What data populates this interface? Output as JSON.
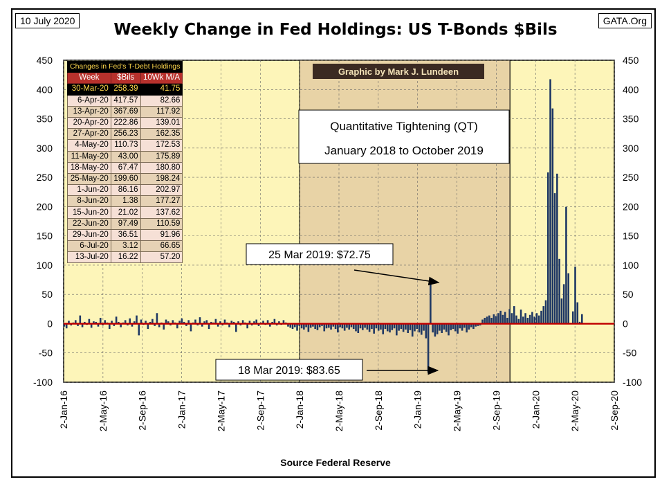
{
  "header": {
    "date": "10 July 2020",
    "source_site": "GATA.Org",
    "title": "Weekly Change in Fed Holdings: US T-Bonds $Bils"
  },
  "footer": {
    "source": "Source Federal Reserve"
  },
  "table": {
    "caption": "Changes in Fed's T-Debt Holdings",
    "columns": [
      "Week",
      "$Bils",
      "10Wk M/A"
    ],
    "rows": [
      [
        "30-Mar-20",
        "258.39",
        "41.75"
      ],
      [
        "6-Apr-20",
        "417.57",
        "82.66"
      ],
      [
        "13-Apr-20",
        "367.69",
        "117.92"
      ],
      [
        "20-Apr-20",
        "222.86",
        "139.01"
      ],
      [
        "27-Apr-20",
        "256.23",
        "162.35"
      ],
      [
        "4-May-20",
        "110.73",
        "172.53"
      ],
      [
        "11-May-20",
        "43.00",
        "175.89"
      ],
      [
        "18-May-20",
        "67.47",
        "180.80"
      ],
      [
        "25-May-20",
        "199.60",
        "198.24"
      ],
      [
        "1-Jun-20",
        "86.16",
        "202.97"
      ],
      [
        "8-Jun-20",
        "1.38",
        "177.27"
      ],
      [
        "15-Jun-20",
        "21.02",
        "137.62"
      ],
      [
        "22-Jun-20",
        "97.49",
        "110.59"
      ],
      [
        "29-Jun-20",
        "36.51",
        "91.96"
      ],
      [
        "6-Jul-20",
        "3.12",
        "66.65"
      ],
      [
        "13-Jul-20",
        "16.22",
        "57.20"
      ]
    ]
  },
  "colors": {
    "plot_background": "#fdf5b9",
    "qt_shade": "#e8d3a6",
    "bars": "#1f3864",
    "zero_line": "#c00000",
    "table_header": "#b7312c",
    "table_highlight_text": "#ffd84d"
  },
  "chart_data": {
    "type": "bar",
    "title": "Weekly Change in Fed Holdings: US T-Bonds $Bils",
    "xlabel": "Source Federal Reserve",
    "ylabel": "",
    "ylim": [
      -100,
      450
    ],
    "yticks": [
      -100,
      -50,
      0,
      50,
      100,
      150,
      200,
      250,
      300,
      350,
      400,
      450
    ],
    "y_axis_both_sides": true,
    "x_range": [
      "2016-01-02",
      "2020-09-02"
    ],
    "x_tick_labels": [
      "2-Jan-16",
      "2-May-16",
      "2-Sep-16",
      "2-Jan-17",
      "2-May-17",
      "2-Sep-17",
      "2-Jan-18",
      "2-May-18",
      "2-Sep-18",
      "2-Jan-19",
      "2-May-19",
      "2-Sep-19",
      "2-Jan-20",
      "2-May-20",
      "2-Sep-20"
    ],
    "grid": true,
    "shaded_region": {
      "label_lines": [
        "Quantitative Tightening (QT)",
        "January 2018 to October 2019"
      ],
      "start": "2018-01-02",
      "end": "2019-10-15"
    },
    "credit": "Graphic by Mark J. Lundeen",
    "annotations": [
      {
        "text": "25 Mar 2019: $72.75",
        "date": "2019-03-25",
        "value": 72.75
      },
      {
        "text": "18 Mar 2019: $83.65",
        "date": "2019-03-18",
        "value": -83.65
      }
    ],
    "series": [
      {
        "start": "2016-01-04",
        "interval_days": 7,
        "values": [
          -5,
          -8,
          5,
          -3,
          2,
          6,
          -4,
          14,
          -6,
          3,
          -2,
          8,
          -7,
          4,
          3,
          -5,
          10,
          -3,
          6,
          2,
          -9,
          5,
          -4,
          12,
          3,
          -6,
          2,
          6,
          -3,
          9,
          -5,
          4,
          14,
          -20,
          7,
          -2,
          5,
          -9,
          3,
          8,
          -4,
          18,
          -6,
          2,
          -10,
          7,
          4,
          -3,
          6,
          2,
          -8,
          5,
          9,
          3,
          -4,
          6,
          -13,
          2,
          7,
          -3,
          11,
          -5,
          4,
          6,
          -9,
          3,
          2,
          8,
          -5,
          4,
          -3,
          7,
          2,
          -6,
          5,
          3,
          -14,
          4,
          -3,
          6,
          2,
          -8,
          5,
          -3,
          4,
          7,
          -4,
          2,
          5,
          -2,
          6,
          -5,
          3,
          8,
          -3,
          4,
          -2,
          6,
          2,
          -5,
          -7,
          -9,
          -6,
          -12,
          -4,
          -8,
          -10,
          -6,
          -14,
          -7,
          -5,
          -9,
          -11,
          -6,
          -4,
          -13,
          -8,
          -7,
          -10,
          -5,
          -9,
          -15,
          -6,
          -8,
          -12,
          -7,
          -10,
          -6,
          -9,
          -13,
          -16,
          -8,
          -11,
          -7,
          -10,
          -14,
          -9,
          -17,
          -8,
          -12,
          -10,
          -18,
          -9,
          -13,
          -15,
          -11,
          -8,
          -20,
          -12,
          -9,
          -14,
          -10,
          -16,
          -11,
          -22,
          -13,
          -9,
          -15,
          -19,
          -12,
          -25,
          -83.65,
          72.75,
          -15,
          -22,
          -18,
          -12,
          -16,
          -10,
          -14,
          -20,
          -11,
          -9,
          -13,
          -17,
          -8,
          -12,
          -7,
          -15,
          -10,
          -6,
          -9,
          -5,
          -4,
          -3,
          7,
          10,
          12,
          14,
          10,
          16,
          13,
          18,
          22,
          15,
          20,
          10,
          25,
          18,
          30,
          14,
          8,
          24,
          12,
          18,
          10,
          15,
          20,
          12,
          18,
          14,
          22,
          30,
          40,
          258.39,
          417.57,
          367.69,
          222.86,
          256.23,
          110.73,
          43.0,
          67.47,
          199.6,
          86.16,
          1.38,
          21.02,
          97.49,
          36.51,
          3.12,
          16.22
        ]
      }
    ]
  }
}
